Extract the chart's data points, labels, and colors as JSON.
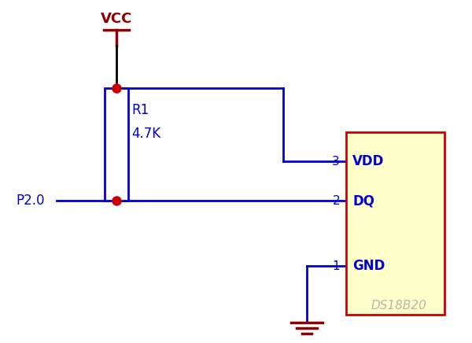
{
  "bg_color": "#ffffff",
  "wire_color": "#0000cc",
  "wire_black": "#000000",
  "dark_red": "#8b0000",
  "vcc_color": "#8b0000",
  "junction_color": "#cc0000",
  "chip_fill": "#ffffcc",
  "chip_edge": "#cc0000",
  "resistor_fill": "#ffffff",
  "resistor_edge": "#0000cc",
  "text_blue": "#0000cc",
  "text_darkred": "#8b0000",
  "vcc_label": "VCC",
  "p20_label": "P2.0",
  "r1_label": "R1",
  "r1_val": "4.7K",
  "pin3_label": "3",
  "pin2_label": "2",
  "pin1_label": "1",
  "vdd_label": "VDD",
  "dq_label": "DQ",
  "gnd_label": "GND",
  "chip_label": "DS18B20",
  "figsize": [
    6.0,
    4.36
  ],
  "dpi": 100
}
